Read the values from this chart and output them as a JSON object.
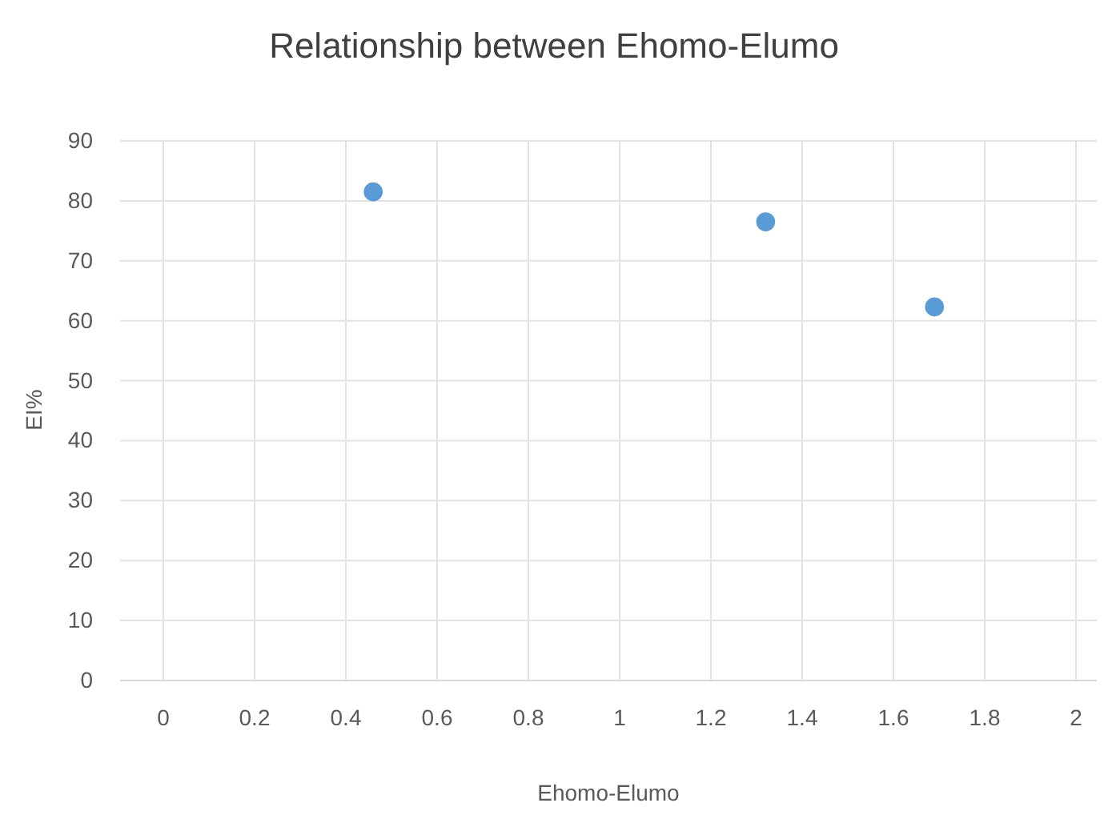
{
  "chart_data": {
    "type": "scatter",
    "title": "Relationship between Ehomo-Elumo",
    "xlabel": "Ehomo-Elumo",
    "ylabel": "EI%",
    "x": [
      0.46,
      1.32,
      1.69
    ],
    "values": [
      81.5,
      76.5,
      62.3
    ],
    "color": "#5b9bd5",
    "marker": "circle",
    "xlim": [
      0,
      2
    ],
    "xticks": [
      0,
      0.2,
      0.4,
      0.6,
      0.8,
      1,
      1.2,
      1.4,
      1.6,
      1.8,
      2
    ],
    "ylim": [
      0,
      90
    ],
    "yticks": [
      0,
      10,
      20,
      30,
      40,
      50,
      60,
      70,
      80,
      90
    ],
    "grid": true
  }
}
